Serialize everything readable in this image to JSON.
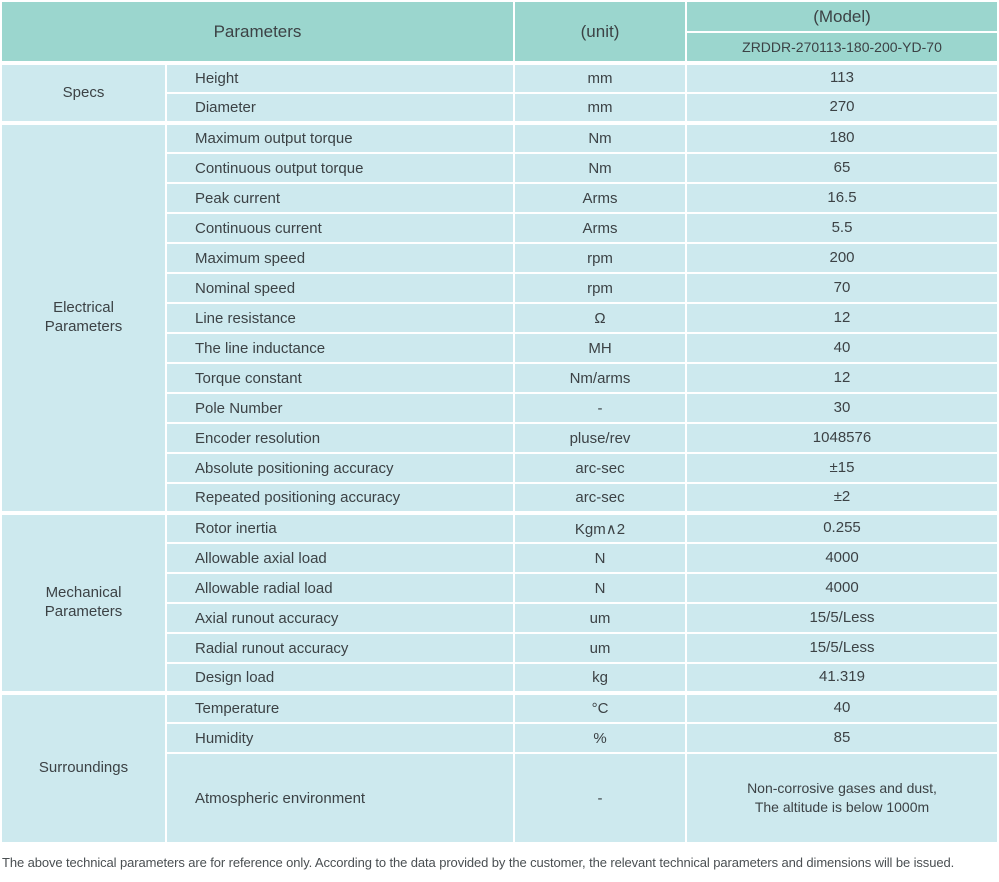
{
  "table": {
    "header": {
      "parameters_label": "Parameters",
      "unit_label": "(unit)",
      "model_label": "(Model)",
      "model_value": "ZRDDR-270113-180-200-YD-70"
    },
    "sections": [
      {
        "name": "Specs",
        "rows": [
          {
            "parameter": "Height",
            "unit": "mm",
            "value": "113"
          },
          {
            "parameter": "Diameter",
            "unit": "mm",
            "value": "270"
          }
        ]
      },
      {
        "name": "Electrical\nParameters",
        "rows": [
          {
            "parameter": "Maximum output torque",
            "unit": "Nm",
            "value": "180"
          },
          {
            "parameter": "Continuous output torque",
            "unit": "Nm",
            "value": "65"
          },
          {
            "parameter": "Peak current",
            "unit": "Arms",
            "value": "16.5"
          },
          {
            "parameter": "Continuous current",
            "unit": "Arms",
            "value": "5.5"
          },
          {
            "parameter": "Maximum speed",
            "unit": "rpm",
            "value": "200"
          },
          {
            "parameter": "Nominal speed",
            "unit": "rpm",
            "value": "70"
          },
          {
            "parameter": "Line resistance",
            "unit": "Ω",
            "value": "12"
          },
          {
            "parameter": "The line inductance",
            "unit": "MH",
            "value": "40"
          },
          {
            "parameter": "Torque constant",
            "unit": "Nm/arms",
            "value": "12"
          },
          {
            "parameter": "Pole Number",
            "unit": "-",
            "value": "30"
          },
          {
            "parameter": "Encoder resolution",
            "unit": "pluse/rev",
            "value": "1048576"
          },
          {
            "parameter": "Absolute positioning accuracy",
            "unit": "arc-sec",
            "value": "±15"
          },
          {
            "parameter": "Repeated positioning accuracy",
            "unit": "arc-sec",
            "value": "±2"
          }
        ]
      },
      {
        "name": "Mechanical\nParameters",
        "rows": [
          {
            "parameter": "Rotor inertia",
            "unit": "Kgm∧2",
            "value": "0.255"
          },
          {
            "parameter": "Allowable axial load",
            "unit": "N",
            "value": "4000"
          },
          {
            "parameter": "Allowable radial load",
            "unit": "N",
            "value": "4000"
          },
          {
            "parameter": "Axial runout accuracy",
            "unit": "um",
            "value": "15/5/Less"
          },
          {
            "parameter": "Radial runout accuracy",
            "unit": "um",
            "value": "15/5/Less"
          },
          {
            "parameter": "Design load",
            "unit": "kg",
            "value": "41.319"
          }
        ]
      },
      {
        "name": "Surroundings",
        "rows": [
          {
            "parameter": "Temperature",
            "unit": "°C",
            "value": "40"
          },
          {
            "parameter": "Humidity",
            "unit": "%",
            "value": "85"
          },
          {
            "parameter": "Atmospheric environment",
            "unit": "-",
            "value": "Non-corrosive gases and dust,\nThe altitude is below 1000m",
            "tall": true
          }
        ]
      }
    ],
    "colors": {
      "header_bg": "#9bd6ce",
      "body_bg": "#cde9ee",
      "divider": "#ffffff",
      "text": "#3c4245"
    }
  },
  "footer": {
    "note": "The above technical parameters are for reference only. According to the data provided by the customer, the relevant technical parameters and dimensions will be issued."
  }
}
